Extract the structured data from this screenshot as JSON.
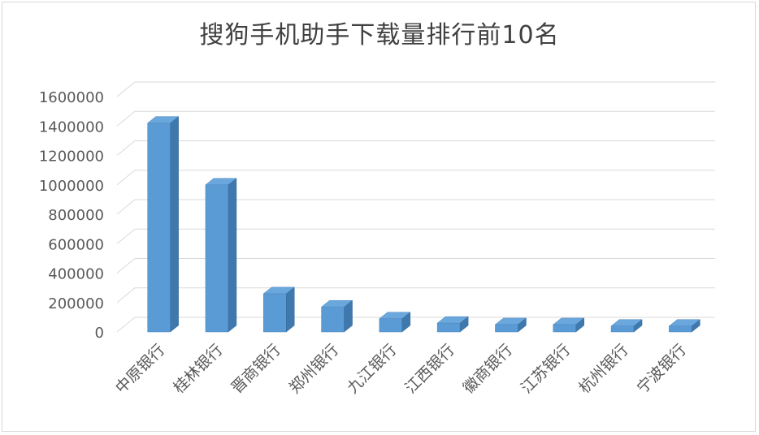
{
  "chart_data": {
    "type": "bar",
    "title": "搜狗手机助手下载量排行前10名",
    "categories": [
      "中原银行",
      "桂林银行",
      "晋商银行",
      "郑州银行",
      "九江银行",
      "江西银行",
      "徽商银行",
      "江苏银行",
      "杭州银行",
      "宁波银行"
    ],
    "values": [
      1420000,
      1000000,
      260000,
      170000,
      90000,
      60000,
      50000,
      50000,
      40000,
      40000
    ],
    "ylim": [
      0,
      1600000
    ],
    "yticks": [
      "0",
      "200000",
      "400000",
      "600000",
      "800000",
      "1000000",
      "1200000",
      "1400000",
      "1600000"
    ],
    "grid": true,
    "bar_color": "#5b9bd5"
  }
}
